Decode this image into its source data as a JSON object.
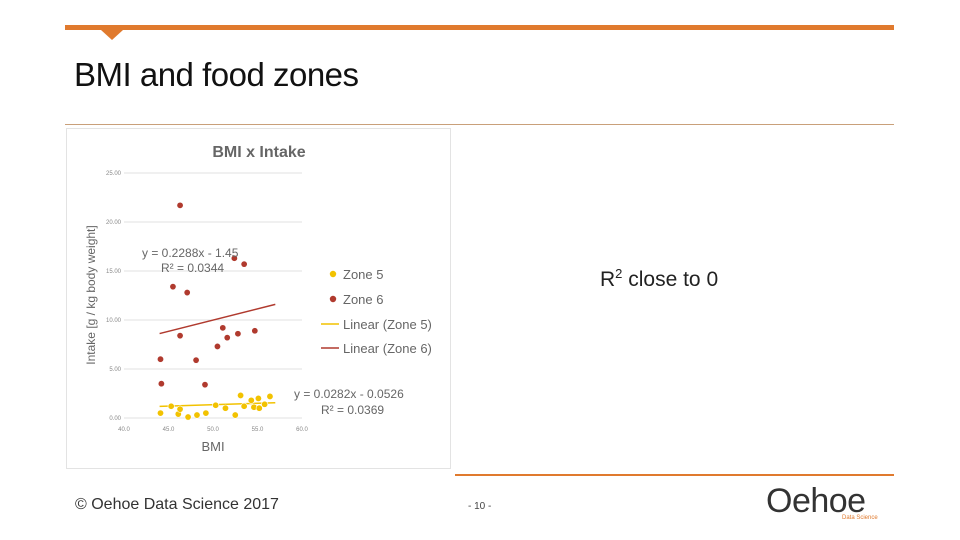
{
  "slide": {
    "title": "BMI and food zones",
    "note_main": "R",
    "note_sup": "2",
    "note_rest": " close to 0",
    "copyright": "© Oehoe Data Science 2017",
    "page_number": "- 10 -",
    "logo_text": "Oehoe",
    "logo_sub": "Data Science",
    "accent_color": "#e07a2e"
  },
  "chart_data": {
    "type": "scatter",
    "title": "BMI x Intake",
    "xlabel": "BMI",
    "ylabel": "Intake [g / kg body weight]",
    "xlim": [
      40,
      60
    ],
    "ylim": [
      0,
      25
    ],
    "x_ticks": [
      "40.0",
      "45.0",
      "50.0",
      "55.0",
      "60.0"
    ],
    "y_ticks": [
      "0.00",
      "5.00",
      "10.00",
      "15.00",
      "20.00",
      "25.00"
    ],
    "grid": true,
    "legend_position": "right",
    "series": [
      {
        "name": "Zone 5",
        "color": "#f2c200",
        "points": [
          [
            44.1,
            0.5
          ],
          [
            45.3,
            1.2
          ],
          [
            46.1,
            0.4
          ],
          [
            46.3,
            0.9
          ],
          [
            47.2,
            0.1
          ],
          [
            48.2,
            0.3
          ],
          [
            49.2,
            0.5
          ],
          [
            50.3,
            1.3
          ],
          [
            51.4,
            1.0
          ],
          [
            52.5,
            0.3
          ],
          [
            53.1,
            2.3
          ],
          [
            53.5,
            1.2
          ],
          [
            54.3,
            1.8
          ],
          [
            54.6,
            1.1
          ],
          [
            55.1,
            2.0
          ],
          [
            55.2,
            1.0
          ],
          [
            55.8,
            1.4
          ],
          [
            56.4,
            2.2
          ]
        ]
      },
      {
        "name": "Zone 6",
        "color": "#b03a2e",
        "points": [
          [
            44.1,
            6.0
          ],
          [
            44.2,
            3.5
          ],
          [
            45.5,
            13.4
          ],
          [
            46.3,
            8.4
          ],
          [
            46.3,
            21.7
          ],
          [
            47.1,
            12.8
          ],
          [
            48.1,
            5.9
          ],
          [
            49.1,
            3.4
          ],
          [
            50.5,
            7.3
          ],
          [
            51.1,
            9.2
          ],
          [
            51.6,
            8.2
          ],
          [
            52.4,
            16.3
          ],
          [
            52.8,
            8.6
          ],
          [
            53.5,
            15.7
          ],
          [
            54.7,
            8.9
          ]
        ]
      }
    ],
    "trendlines": [
      {
        "name": "Linear (Zone 5)",
        "color": "#f2c200",
        "slope": 0.0282,
        "intercept": -0.0526,
        "x_range": [
          44,
          57
        ]
      },
      {
        "name": "Linear (Zone 6)",
        "color": "#b03a2e",
        "slope": 0.2288,
        "intercept": -1.45,
        "x_range": [
          44,
          57
        ]
      }
    ],
    "annotations": [
      {
        "series": "Zone 6",
        "line1": "y = 0.2288x - 1.45",
        "line2": "R² = 0.0344"
      },
      {
        "series": "Zone 5",
        "line1": "y = 0.0282x - 0.0526",
        "line2": "R² = 0.0369"
      }
    ],
    "legend": [
      {
        "label": "Zone 5",
        "kind": "marker",
        "color": "#f2c200"
      },
      {
        "label": "Zone 6",
        "kind": "marker",
        "color": "#b03a2e"
      },
      {
        "label": "Linear (Zone 5)",
        "kind": "line",
        "color": "#f2c200"
      },
      {
        "label": "Linear (Zone 6)",
        "kind": "line",
        "color": "#b03a2e"
      }
    ]
  }
}
